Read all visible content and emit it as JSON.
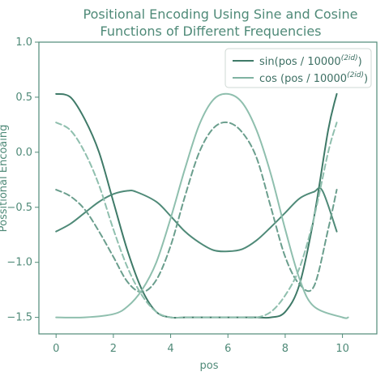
{
  "chart_data": {
    "type": "line",
    "title": [
      "Positional Encoding Using Sine and Cosine",
      "Functions of Different Frequencies"
    ],
    "xlabel": "pos",
    "ylabel": "Possitional Encoaing",
    "xlim": [
      -0.6,
      11.2
    ],
    "ylim": [
      -1.65,
      1.0
    ],
    "xticks": [
      0,
      2,
      4,
      6,
      8,
      10
    ],
    "xtick_labels": [
      "0",
      "2",
      "4",
      "6",
      "8",
      "10"
    ],
    "yticks": [
      1.0,
      0.5,
      0.0,
      -0.5,
      -1.0,
      -1.5
    ],
    "ytick_labels": [
      "1.0",
      "0.5",
      "0.0",
      "−0.5",
      "−1.0",
      "−1.5"
    ],
    "grid": false,
    "legend_position": "top-right",
    "legend": [
      {
        "label": "sin(pos / 10000",
        "sup": "(2id)",
        "close": ")",
        "color": "#3f7a68"
      },
      {
        "label": "cos (pos / 10000",
        "sup": "(2id)",
        "close": ")",
        "color": "#7fb3a1"
      }
    ],
    "series": [
      {
        "color": "#3f7a68",
        "dash": false,
        "x": [
          0,
          0.5,
          1,
          1.5,
          2,
          2.5,
          3,
          3.5,
          4,
          4.5,
          5,
          5.5,
          6,
          6.5,
          7,
          7.5,
          8,
          8.5,
          9,
          9.5,
          9.8
        ],
        "y": [
          0.53,
          0.5,
          0.3,
          0.0,
          -0.45,
          -0.9,
          -1.25,
          -1.45,
          -1.5,
          -1.5,
          -1.5,
          -1.5,
          -1.5,
          -1.5,
          -1.5,
          -1.5,
          -1.45,
          -1.2,
          -0.6,
          0.2,
          0.53
        ]
      },
      {
        "color": "#4f8a78",
        "dash": false,
        "x": [
          0,
          0.5,
          1,
          1.5,
          2,
          2.5,
          2.8,
          3.5,
          4,
          4.5,
          5,
          5.5,
          6,
          6.5,
          7,
          7.5,
          8,
          8.5,
          9,
          9.3,
          9.8
        ],
        "y": [
          -0.72,
          -0.65,
          -0.55,
          -0.45,
          -0.38,
          -0.35,
          -0.36,
          -0.45,
          -0.58,
          -0.72,
          -0.82,
          -0.89,
          -0.9,
          -0.88,
          -0.8,
          -0.68,
          -0.55,
          -0.42,
          -0.36,
          -0.35,
          -0.72
        ]
      },
      {
        "color": "#6a9e8d",
        "dash": true,
        "x": [
          0,
          0.5,
          1,
          1.5,
          2,
          2.5,
          3,
          3.5,
          4,
          4.5,
          5,
          5.5,
          6,
          6.5,
          7,
          7.5,
          8,
          8.5,
          9,
          9.5,
          9.8
        ],
        "y": [
          -0.34,
          -0.4,
          -0.52,
          -0.72,
          -0.95,
          -1.18,
          -1.27,
          -1.16,
          -0.85,
          -0.4,
          0.0,
          0.22,
          0.27,
          0.18,
          -0.05,
          -0.5,
          -0.95,
          -1.2,
          -1.22,
          -0.7,
          -0.34
        ]
      },
      {
        "color": "#8fbfae",
        "dash": true,
        "x": [
          0,
          0.5,
          1,
          1.5,
          2,
          2.5,
          3,
          3.5,
          4,
          4.5,
          5,
          5.5,
          6,
          6.5,
          7,
          7.5,
          8,
          8.5,
          9,
          9.5,
          9.8
        ],
        "y": [
          0.27,
          0.2,
          0.0,
          -0.3,
          -0.7,
          -1.05,
          -1.3,
          -1.45,
          -1.5,
          -1.5,
          -1.5,
          -1.5,
          -1.5,
          -1.5,
          -1.5,
          -1.45,
          -1.3,
          -1.05,
          -0.6,
          0.0,
          0.27
        ]
      },
      {
        "color": "#8fbfae",
        "dash": false,
        "x": [
          0,
          1,
          2,
          2.5,
          3,
          3.5,
          4,
          4.5,
          5,
          5.5,
          6,
          6.5,
          7,
          7.5,
          8,
          8.5,
          9,
          10,
          10.2
        ],
        "y": [
          -1.5,
          -1.5,
          -1.47,
          -1.4,
          -1.25,
          -1.0,
          -0.6,
          -0.15,
          0.25,
          0.48,
          0.53,
          0.45,
          0.2,
          -0.2,
          -0.7,
          -1.15,
          -1.4,
          -1.5,
          -1.5
        ]
      }
    ]
  }
}
